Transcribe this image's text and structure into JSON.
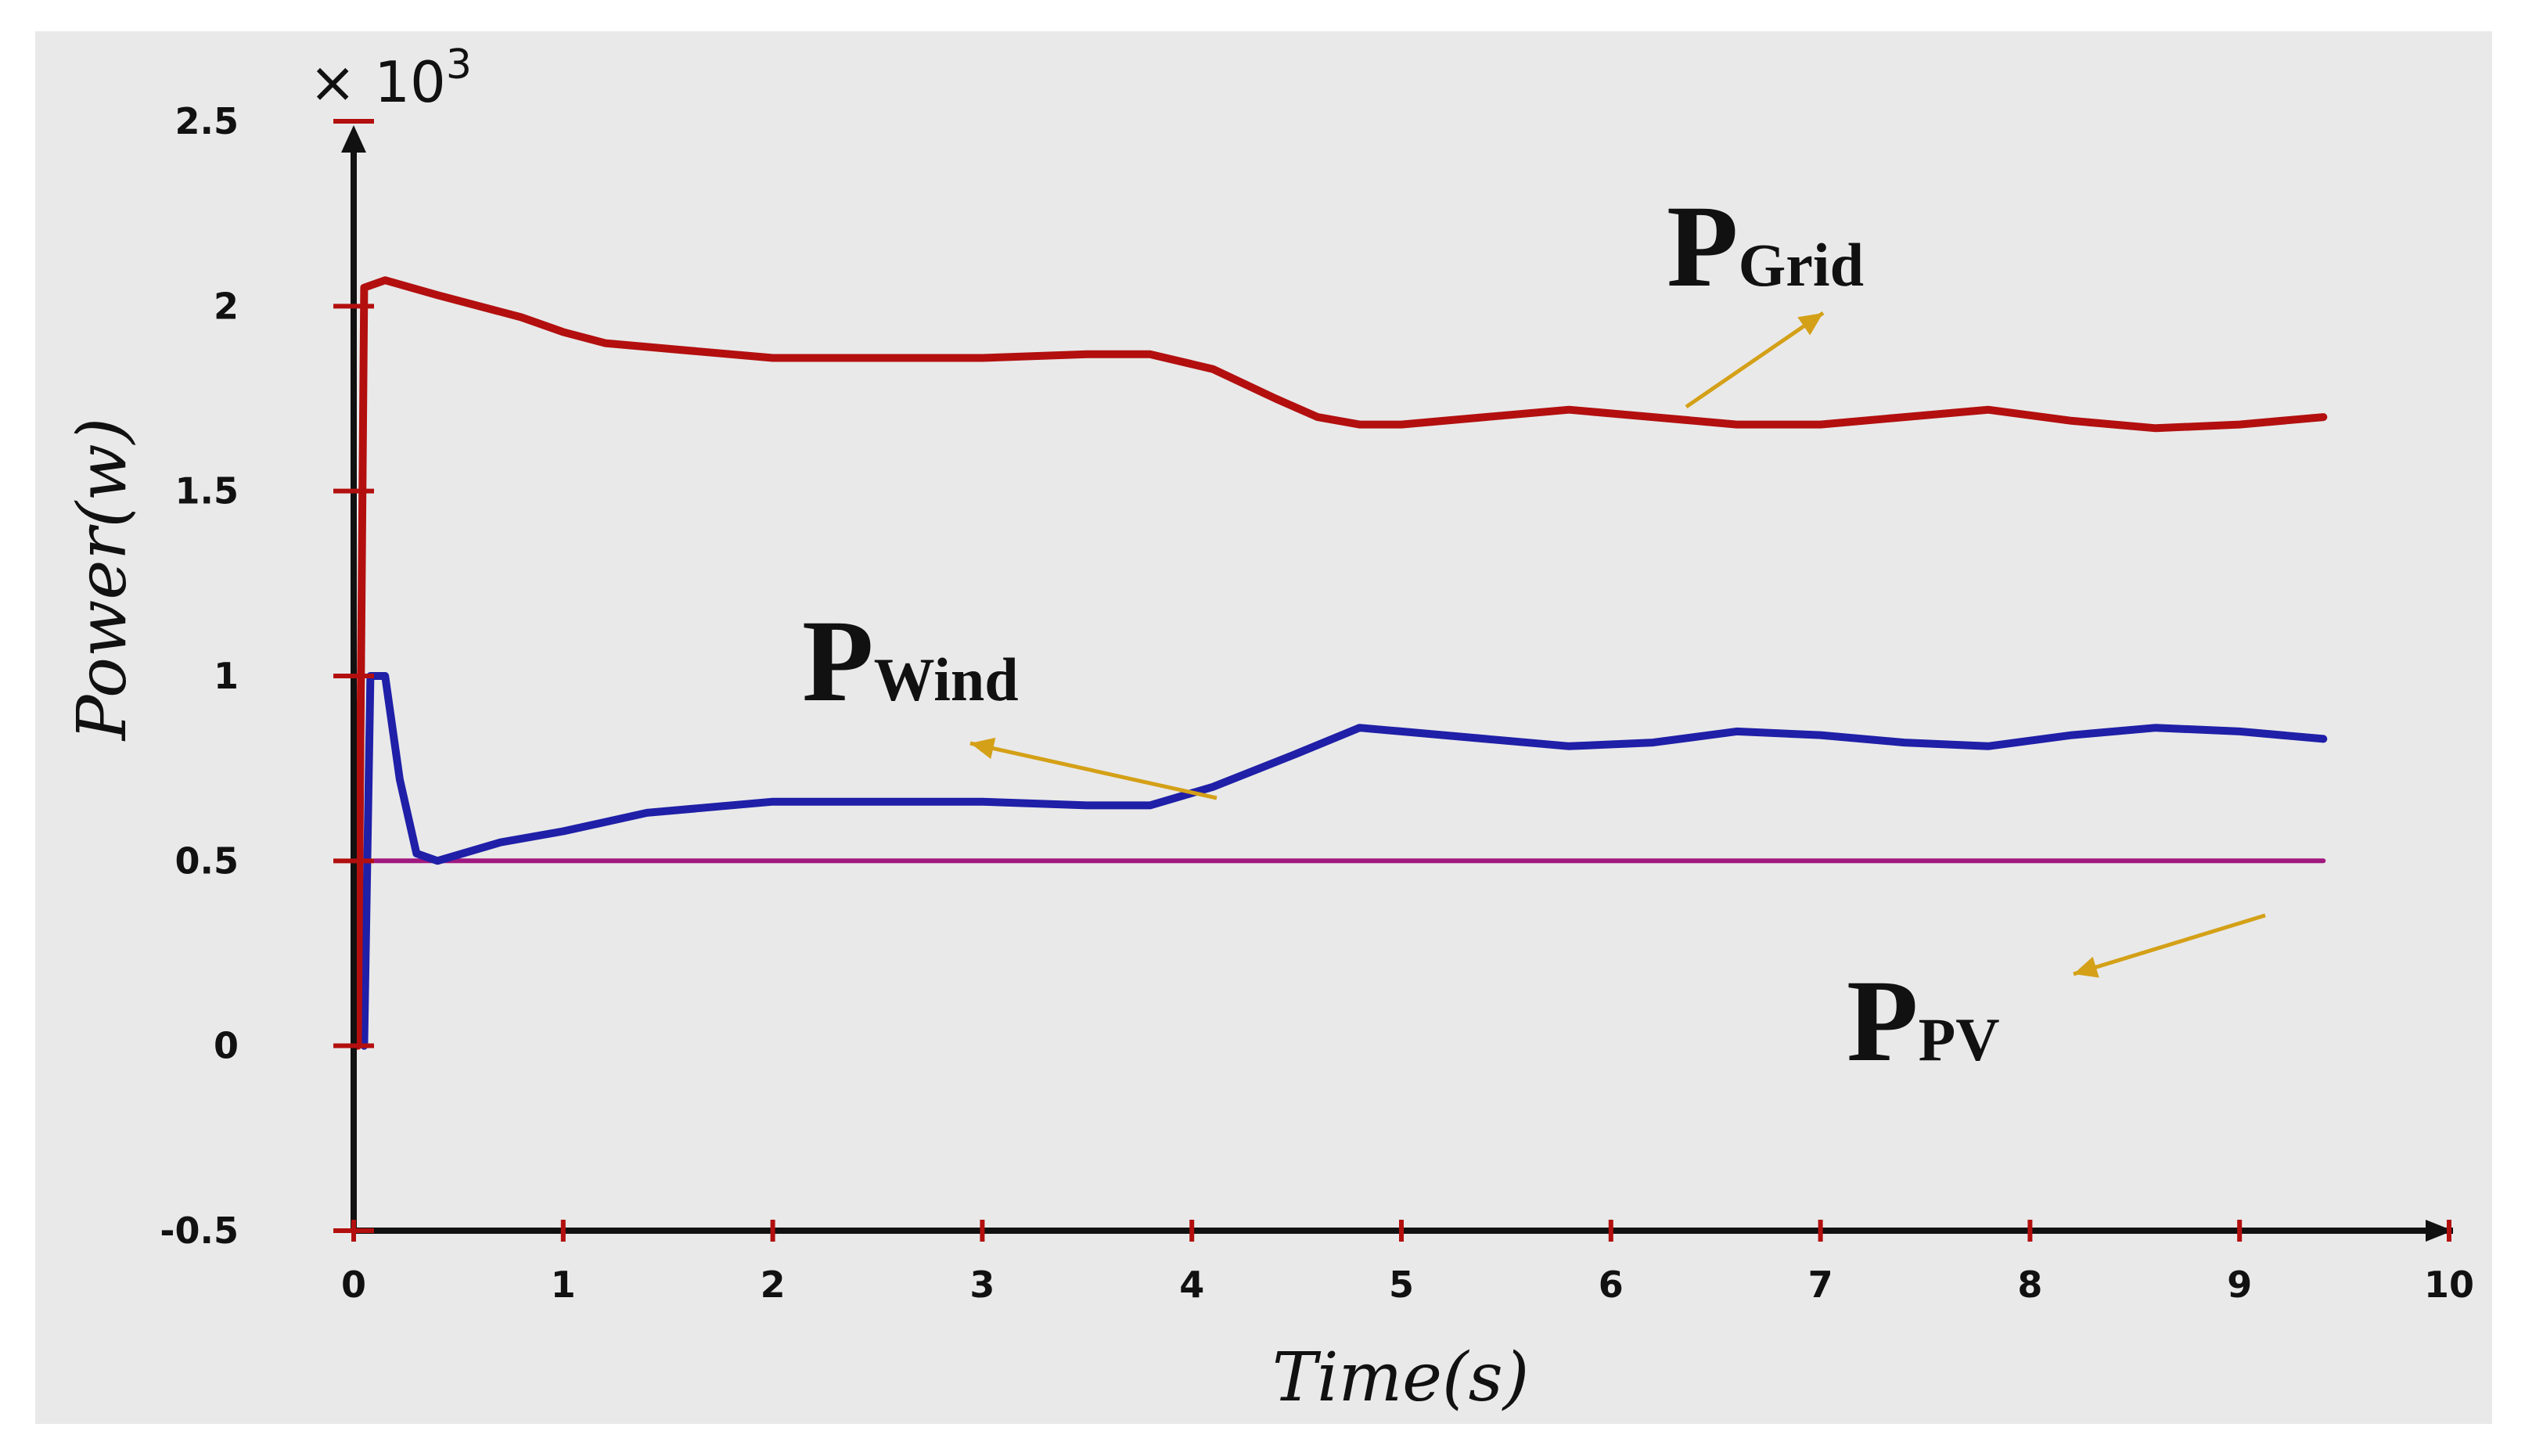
{
  "chart_data": {
    "type": "line",
    "xlabel": "Time(s)",
    "ylabel": "Power(w)",
    "y_scale_label": "× 10",
    "y_scale_exponent": "3",
    "xlim": [
      0,
      10
    ],
    "ylim": [
      -0.5,
      2.5
    ],
    "x_ticks": [
      "0",
      "1",
      "2",
      "3",
      "4",
      "5",
      "6",
      "7",
      "8",
      "9",
      "10"
    ],
    "y_ticks": [
      "-0.5",
      "0",
      "0.5",
      "1",
      "1.5",
      "2",
      "2.5"
    ],
    "grid": false,
    "series": [
      {
        "name": "PGrid",
        "label_main": "P",
        "label_sub": "Grid",
        "color": "#b30f0f",
        "points": [
          [
            0.02,
            0.0
          ],
          [
            0.05,
            2.05
          ],
          [
            0.15,
            2.07
          ],
          [
            0.4,
            2.03
          ],
          [
            0.8,
            1.97
          ],
          [
            1.0,
            1.93
          ],
          [
            1.2,
            1.9
          ],
          [
            1.6,
            1.88
          ],
          [
            2.0,
            1.86
          ],
          [
            2.5,
            1.86
          ],
          [
            3.0,
            1.86
          ],
          [
            3.5,
            1.87
          ],
          [
            3.8,
            1.87
          ],
          [
            4.1,
            1.83
          ],
          [
            4.4,
            1.75
          ],
          [
            4.6,
            1.7
          ],
          [
            4.8,
            1.68
          ],
          [
            5.0,
            1.68
          ],
          [
            5.4,
            1.7
          ],
          [
            5.8,
            1.72
          ],
          [
            6.2,
            1.7
          ],
          [
            6.6,
            1.68
          ],
          [
            7.0,
            1.68
          ],
          [
            7.4,
            1.7
          ],
          [
            7.8,
            1.72
          ],
          [
            8.2,
            1.69
          ],
          [
            8.6,
            1.67
          ],
          [
            9.0,
            1.68
          ],
          [
            9.4,
            1.7
          ]
        ]
      },
      {
        "name": "PWind",
        "label_main": "P",
        "label_sub": "Wind",
        "color": "#1f1fa8",
        "points": [
          [
            0.05,
            0.0
          ],
          [
            0.08,
            1.0
          ],
          [
            0.15,
            1.0
          ],
          [
            0.22,
            0.72
          ],
          [
            0.3,
            0.52
          ],
          [
            0.4,
            0.5
          ],
          [
            0.7,
            0.55
          ],
          [
            1.0,
            0.58
          ],
          [
            1.4,
            0.63
          ],
          [
            2.0,
            0.66
          ],
          [
            2.5,
            0.66
          ],
          [
            3.0,
            0.66
          ],
          [
            3.5,
            0.65
          ],
          [
            3.8,
            0.65
          ],
          [
            4.1,
            0.7
          ],
          [
            4.5,
            0.79
          ],
          [
            4.8,
            0.86
          ],
          [
            5.0,
            0.85
          ],
          [
            5.4,
            0.83
          ],
          [
            5.8,
            0.81
          ],
          [
            6.2,
            0.82
          ],
          [
            6.6,
            0.85
          ],
          [
            7.0,
            0.84
          ],
          [
            7.4,
            0.82
          ],
          [
            7.8,
            0.81
          ],
          [
            8.2,
            0.84
          ],
          [
            8.6,
            0.86
          ],
          [
            9.0,
            0.85
          ],
          [
            9.4,
            0.83
          ]
        ]
      },
      {
        "name": "PPV",
        "label_main": "P",
        "label_sub": "PV",
        "color": "#a0197f",
        "points": [
          [
            0.1,
            0.5
          ],
          [
            0.3,
            0.5
          ],
          [
            1.0,
            0.5
          ],
          [
            2.0,
            0.5
          ],
          [
            3.0,
            0.5
          ],
          [
            4.0,
            0.5
          ],
          [
            5.0,
            0.5
          ],
          [
            6.0,
            0.5
          ],
          [
            7.0,
            0.5
          ],
          [
            8.0,
            0.5
          ],
          [
            9.0,
            0.5
          ],
          [
            9.4,
            0.5
          ]
        ]
      }
    ],
    "arrow_color": "#d4a017"
  }
}
